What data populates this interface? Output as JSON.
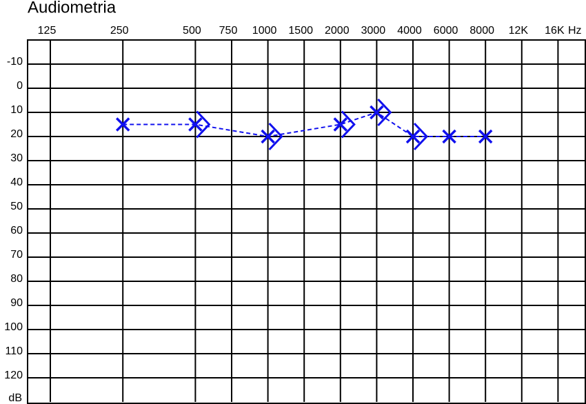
{
  "chart_data": {
    "type": "audiogram",
    "title": "Audiometria",
    "x_label": "Hz",
    "y_label": "dB",
    "categories": [
      "125",
      null,
      "250",
      null,
      "500",
      "750",
      "1000",
      "1500",
      "2000",
      "3000",
      "4000",
      "6000",
      "8000",
      "12K",
      "16K"
    ],
    "ylim": [
      -20,
      130
    ],
    "y_inverted": true,
    "yticks": [
      -10,
      0,
      10,
      20,
      30,
      40,
      50,
      60,
      70,
      80,
      90,
      100,
      110,
      120
    ],
    "grid": true,
    "series": [
      {
        "marker": "x",
        "line": "dashed",
        "color": "#1010ee",
        "x": [
          "250",
          "500",
          "1000",
          "2000",
          "3000",
          "4000",
          "6000",
          "8000"
        ],
        "values": [
          15,
          15,
          20,
          15,
          10,
          20,
          20,
          20
        ]
      },
      {
        "marker": ">",
        "line": "none",
        "color": "#1010ee",
        "x": [
          "500",
          "1000",
          "2000",
          "3000",
          "4000"
        ],
        "values": [
          15,
          20,
          15,
          10,
          20
        ]
      }
    ]
  }
}
